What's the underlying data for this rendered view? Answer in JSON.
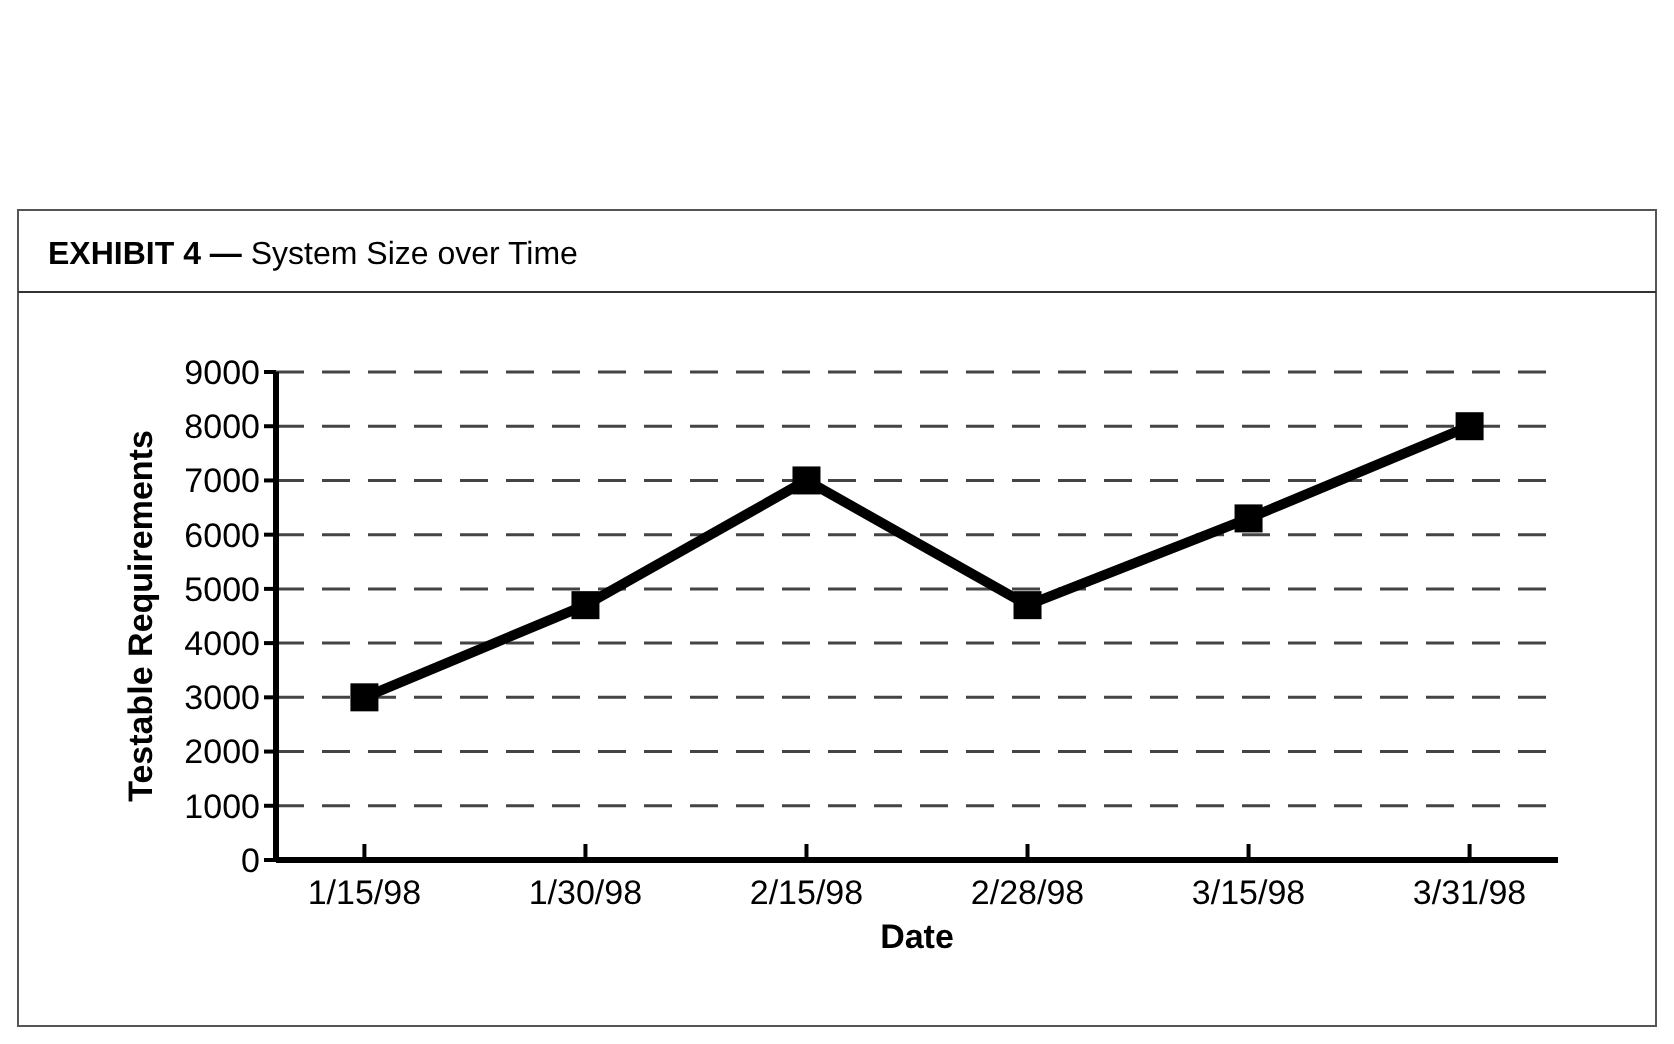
{
  "chart_data": {
    "type": "line",
    "title": "EXHIBIT 4 — System Size over Time",
    "xlabel": "Date",
    "ylabel": "Testable Requirements",
    "categories": [
      "1/15/98",
      "1/30/98",
      "2/15/98",
      "2/28/98",
      "3/15/98",
      "3/31/98"
    ],
    "series": [
      {
        "color": "#000000",
        "values": [
          3000,
          4700,
          7000,
          4700,
          6300,
          8000
        ]
      }
    ],
    "ylim": [
      0,
      9000
    ],
    "yticks": [
      0,
      1000,
      2000,
      3000,
      4000,
      5000,
      6000,
      7000,
      8000,
      9000
    ],
    "grid": "y",
    "marker": "square",
    "line_style": "solid"
  }
}
